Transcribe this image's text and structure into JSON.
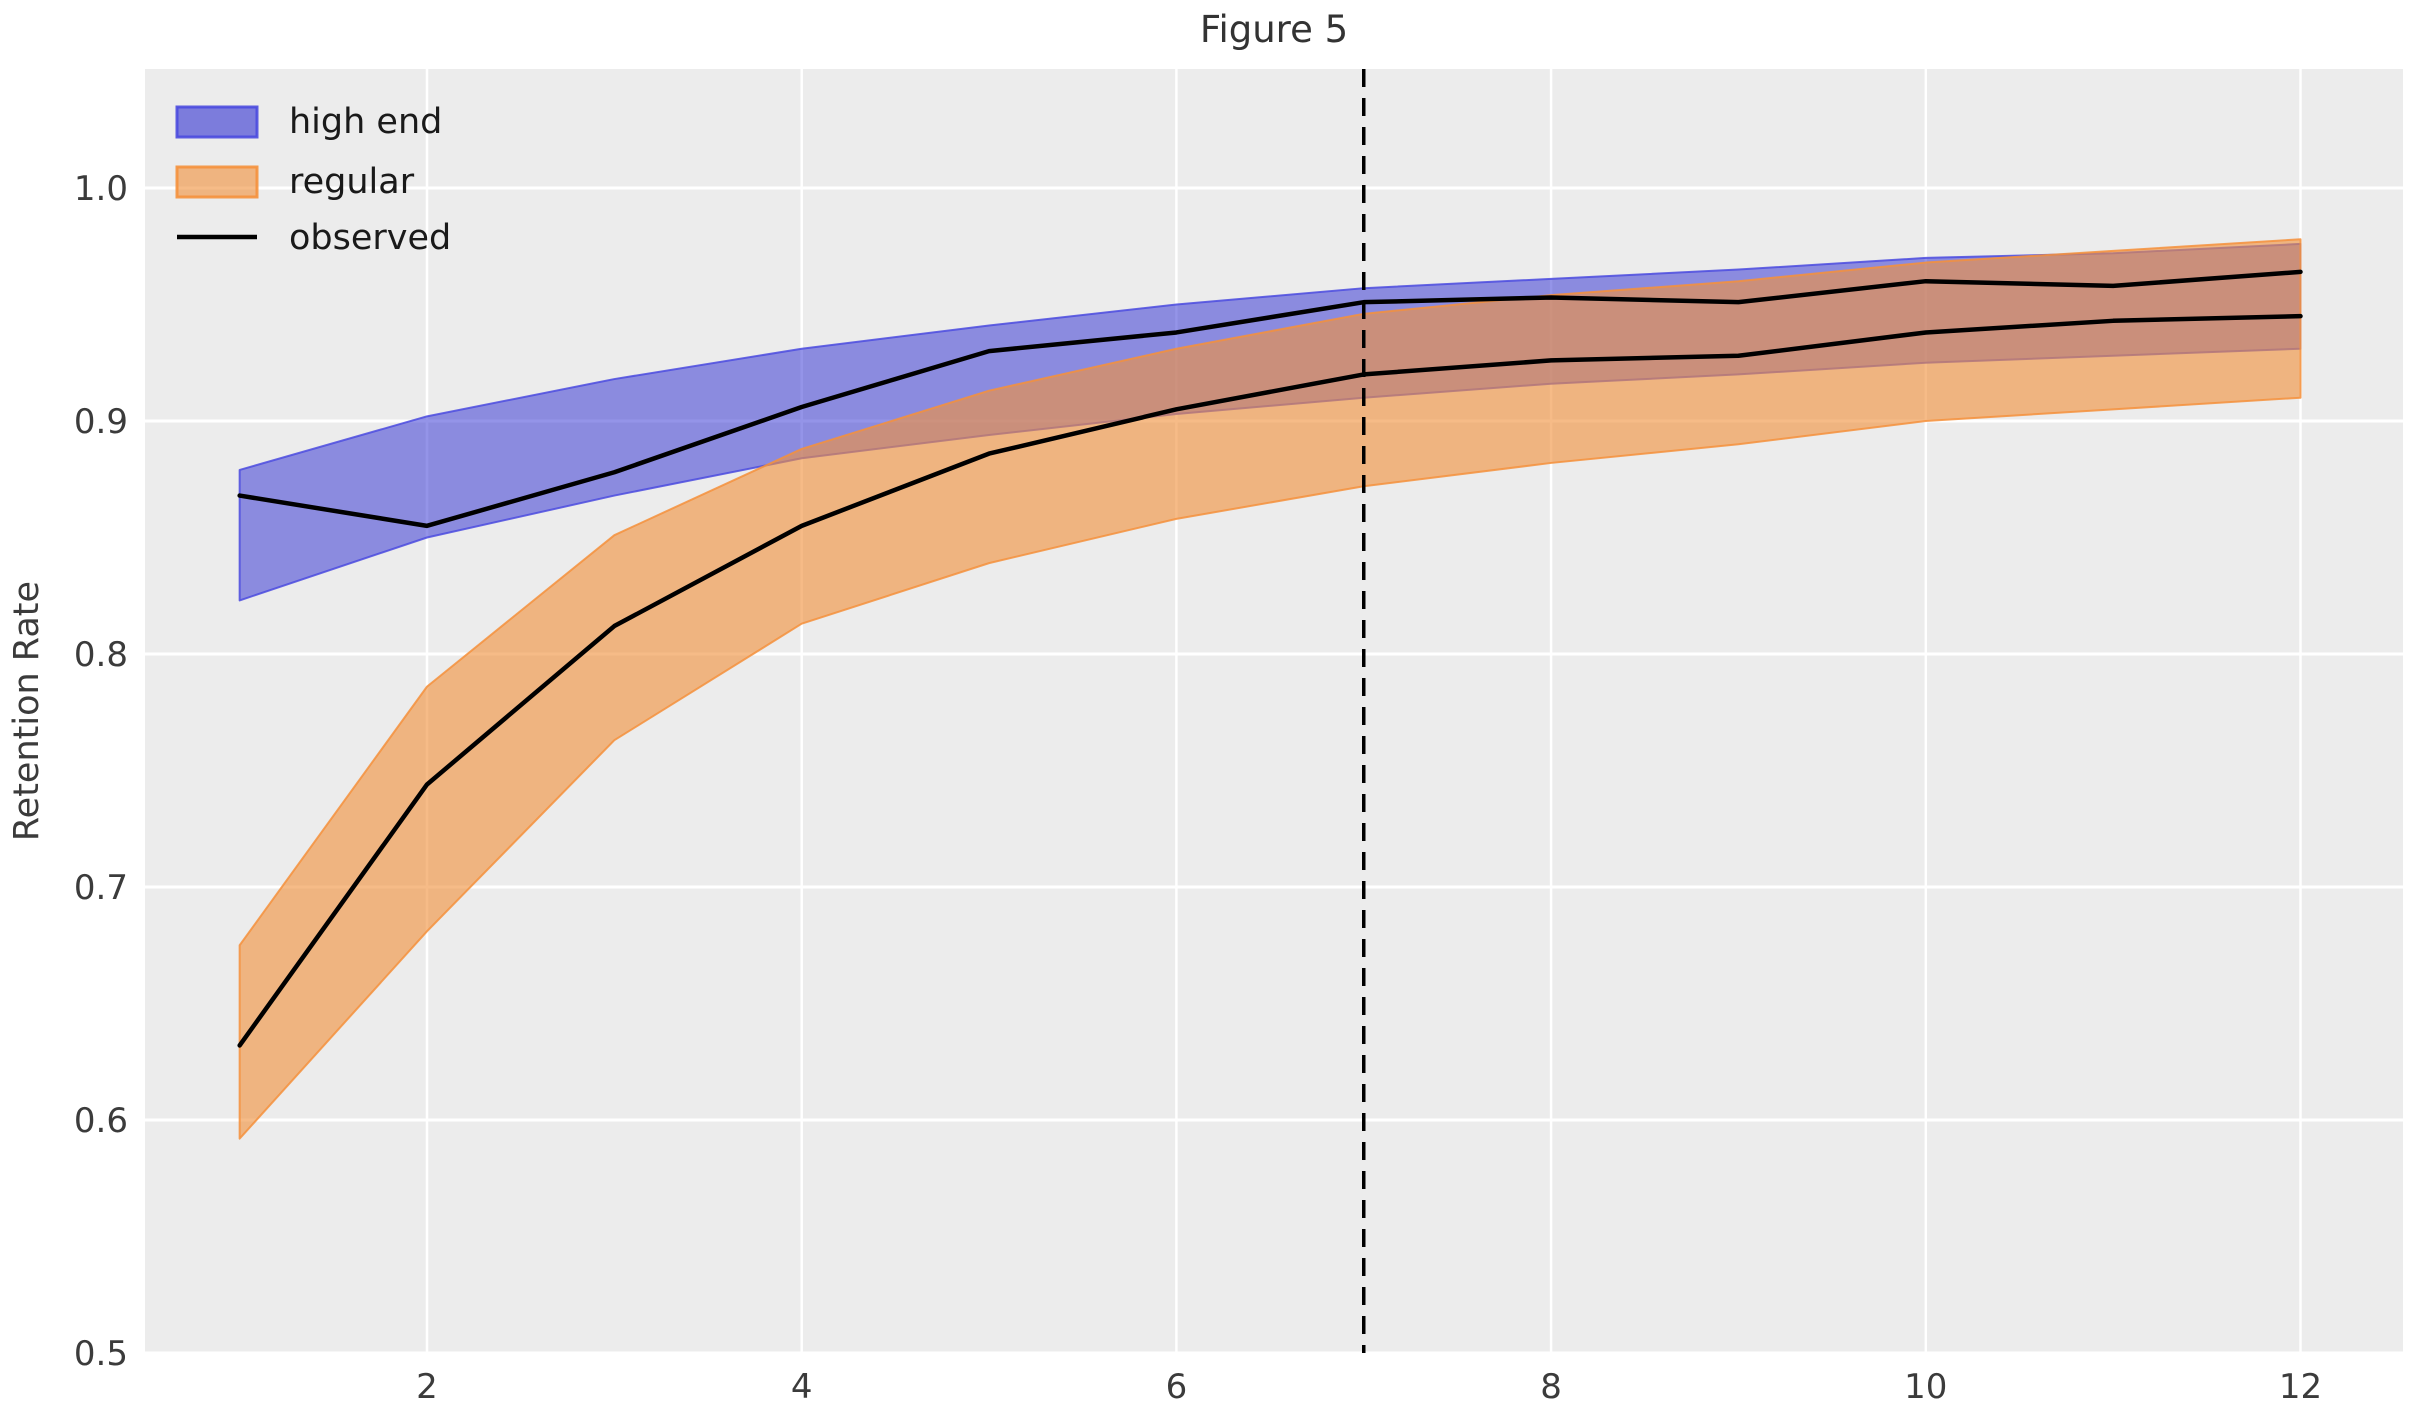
{
  "chart_data": {
    "type": "line",
    "title": "Figure 5",
    "xlabel": "",
    "ylabel": "Retention Rate",
    "x": [
      1,
      2,
      3,
      4,
      5,
      6,
      7,
      8,
      9,
      10,
      11,
      12
    ],
    "x_ticks": [
      {
        "label": "2",
        "value": 2
      },
      {
        "label": "4",
        "value": 4
      },
      {
        "label": "6",
        "value": 6
      },
      {
        "label": "8",
        "value": 8
      },
      {
        "label": "10",
        "value": 10
      },
      {
        "label": "12",
        "value": 12
      }
    ],
    "y_ticks": [
      {
        "label": "1.0",
        "value": 1.0
      },
      {
        "label": "0.9",
        "value": 0.9
      },
      {
        "label": "0.8",
        "value": 0.8
      },
      {
        "label": "0.7",
        "value": 0.7
      },
      {
        "label": "0.6",
        "value": 0.6
      },
      {
        "label": "0.5",
        "value": 0.5
      }
    ],
    "xlim": [
      0.49,
      12.55
    ],
    "ylim": [
      0.5,
      1.051
    ],
    "grid": true,
    "legend_position": "upper left",
    "vline_x": 7,
    "bands": [
      {
        "name": "high end",
        "fill": "#3232d2",
        "fill_opacity": 0.52,
        "edge": "#4b4bdf",
        "upper": [
          0.879,
          0.902,
          0.918,
          0.931,
          0.941,
          0.95,
          0.957,
          0.961,
          0.965,
          0.97,
          0.972,
          0.976
        ],
        "lower": [
          0.823,
          0.85,
          0.868,
          0.884,
          0.894,
          0.903,
          0.91,
          0.916,
          0.92,
          0.925,
          0.928,
          0.931
        ]
      },
      {
        "name": "regular",
        "fill": "#f0923e",
        "fill_opacity": 0.62,
        "edge": "#f5913c",
        "upper": [
          0.675,
          0.786,
          0.851,
          0.888,
          0.913,
          0.931,
          0.946,
          0.954,
          0.96,
          0.968,
          0.973,
          0.978
        ],
        "lower": [
          0.592,
          0.681,
          0.763,
          0.813,
          0.839,
          0.858,
          0.872,
          0.882,
          0.89,
          0.9,
          0.905,
          0.91
        ]
      }
    ],
    "observed": [
      {
        "name": "observed high end",
        "values": [
          0.868,
          0.855,
          0.878,
          0.906,
          0.93,
          0.938,
          0.951,
          0.953,
          0.951,
          0.96,
          0.958,
          0.964
        ]
      },
      {
        "name": "observed regular",
        "values": [
          0.632,
          0.744,
          0.812,
          0.855,
          0.886,
          0.905,
          0.92,
          0.926,
          0.928,
          0.938,
          0.943,
          0.945
        ]
      }
    ],
    "colors": {
      "background": "#ececec",
      "grid": "#ffffff",
      "observed": "#000000",
      "vline": "#000000",
      "high_end_fill": "#3232d2",
      "regular_fill": "#f0923e"
    }
  },
  "legend": {
    "items": [
      {
        "label": "high end"
      },
      {
        "label": "regular"
      },
      {
        "label": "observed"
      }
    ]
  }
}
